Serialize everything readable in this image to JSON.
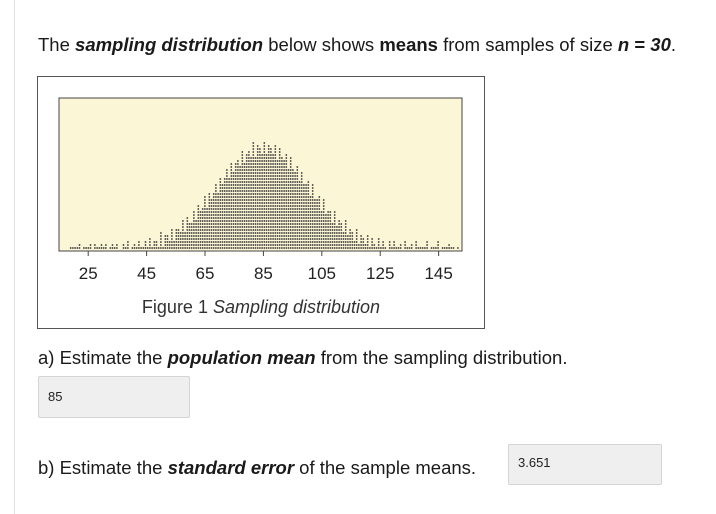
{
  "prompt": {
    "part1": "The ",
    "term1": "sampling distribution",
    "part2": " below shows ",
    "term2": "means",
    "part3": " from samples of size ",
    "n_label": "n",
    "equals": " = ",
    "n_value": "30",
    "period": "."
  },
  "figure": {
    "plot_background": "#fbf6d6",
    "tick_labels": [
      "25",
      "45",
      "65",
      "85",
      "105",
      "125",
      "145"
    ],
    "caption_prefix": "Figure 1 ",
    "caption_italic": "Sampling distribution"
  },
  "chart_data": {
    "type": "scatter",
    "x": [
      25,
      45,
      65,
      85,
      105,
      125,
      145
    ],
    "xlabel": "",
    "ylabel": "",
    "title": "",
    "xlim": [
      15,
      153
    ],
    "grid": false
  },
  "question_a": {
    "prefix": "a) Estimate the ",
    "term": "population mean",
    "suffix": " from the sampling distribution.",
    "answer": "85"
  },
  "question_b": {
    "prefix": "b) Estimate the ",
    "term": "standard error",
    "suffix": " of the sample means.",
    "answer": "3.651"
  }
}
